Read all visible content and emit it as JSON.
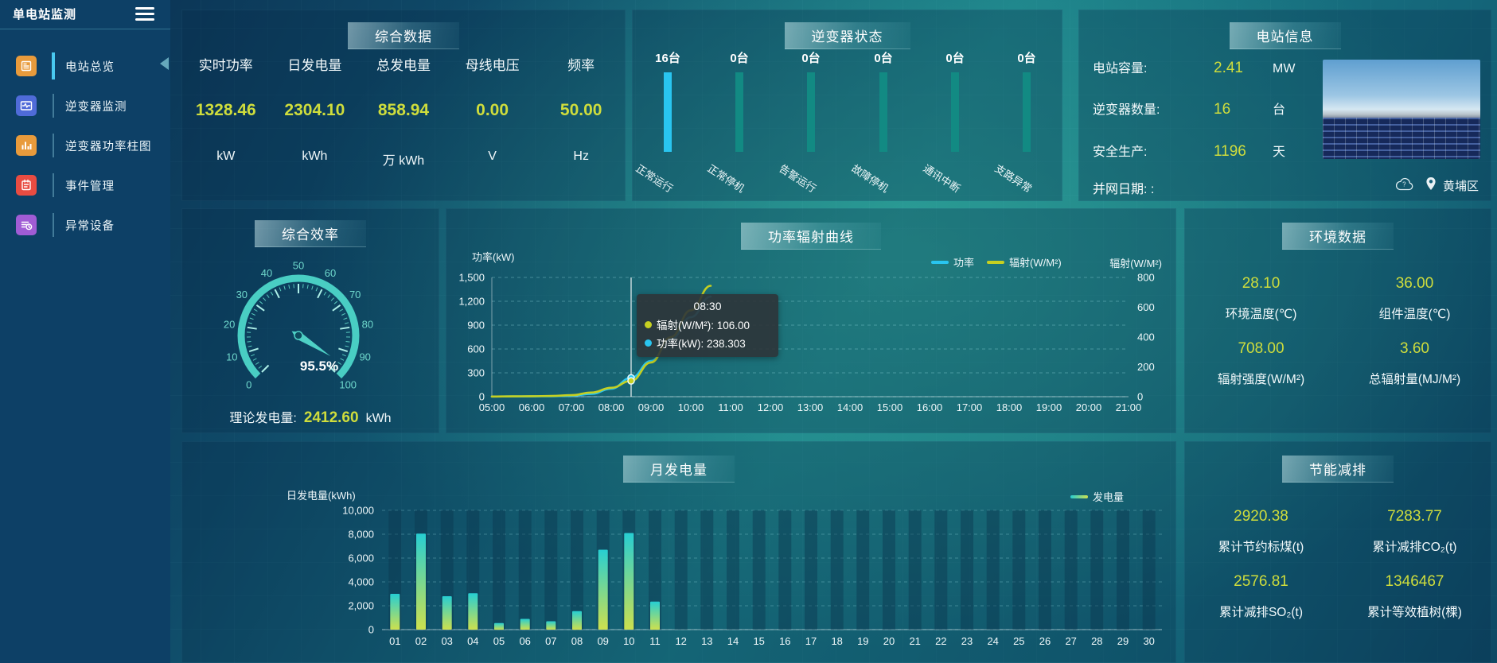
{
  "app": {
    "title": "单电站监测"
  },
  "sidebar": {
    "items": [
      {
        "label": "电站总览",
        "icon": "station-overview-icon",
        "color": "#e89b3c",
        "active": true
      },
      {
        "label": "逆变器监测",
        "icon": "inverter-monitor-icon",
        "color": "#4f6bd8",
        "active": false
      },
      {
        "label": "逆变器功率柱图",
        "icon": "inverter-power-bars-icon",
        "color": "#e89b3c",
        "active": false
      },
      {
        "label": "事件管理",
        "icon": "event-management-icon",
        "color": "#e84c42",
        "active": false
      },
      {
        "label": "异常设备",
        "icon": "abnormal-devices-icon",
        "color": "#a05cd5",
        "active": false
      }
    ]
  },
  "summary": {
    "title": "综合数据",
    "metrics": [
      {
        "label": "实时功率",
        "value": "1328.46",
        "unit": "kW"
      },
      {
        "label": "日发电量",
        "value": "2304.10",
        "unit": "kWh"
      },
      {
        "label": "总发电量",
        "value": "858.94",
        "unit": "万 kWh"
      },
      {
        "label": "母线电压",
        "value": "0.00",
        "unit": "V"
      },
      {
        "label": "频率",
        "value": "50.00",
        "unit": "Hz"
      }
    ]
  },
  "inverter_status": {
    "title": "逆变器状态",
    "statuses": [
      {
        "count": "16台",
        "label": "正常运行",
        "highlight": true
      },
      {
        "count": "0台",
        "label": "正常停机",
        "highlight": false
      },
      {
        "count": "0台",
        "label": "告警运行",
        "highlight": false
      },
      {
        "count": "0台",
        "label": "故障停机",
        "highlight": false
      },
      {
        "count": "0台",
        "label": "通讯中断",
        "highlight": false
      },
      {
        "count": "0台",
        "label": "支路异常",
        "highlight": false
      }
    ]
  },
  "station_info": {
    "title": "电站信息",
    "rows": [
      {
        "label": "电站容量:",
        "value": "2.41",
        "unit": "MW"
      },
      {
        "label": "逆变器数量:",
        "value": "16",
        "unit": "台"
      },
      {
        "label": "安全生产:",
        "value": "1196",
        "unit": "天"
      }
    ],
    "grid_date_label": "并网日期: :",
    "location": "黄埔区"
  },
  "efficiency": {
    "title": "综合效率",
    "value_label": "95.5%",
    "theory_label": "理论发电量:",
    "theory_value": "2412.60",
    "theory_unit": "kWh"
  },
  "power_radiation": {
    "title": "功率辐射曲线"
  },
  "environment": {
    "title": "环境数据",
    "metrics": [
      {
        "value": "28.10",
        "label": "环境温度(℃)"
      },
      {
        "value": "36.00",
        "label": "组件温度(℃)"
      },
      {
        "value": "708.00",
        "label": "辐射强度(W/M²)"
      },
      {
        "value": "3.60",
        "label": "总辐射量(MJ/M²)"
      }
    ]
  },
  "monthly": {
    "title": "月发电量"
  },
  "energy_saving": {
    "title": "节能减排",
    "metrics": [
      {
        "value": "2920.38",
        "label": "累计节约标煤(t)"
      },
      {
        "value": "7283.77",
        "label": "累计减排CO₂(t)"
      },
      {
        "value": "2576.81",
        "label": "累计减排SO₂(t)"
      },
      {
        "value": "1346467",
        "label": "累计等效植树(棵)"
      }
    ]
  },
  "colors": {
    "value_yellow": "#cfdd3c",
    "power_line": "#29c5f0",
    "radiation_line": "#c6d021",
    "status_highlight_bar": "#29c5f0",
    "status_normal_bar": "#128a83",
    "bar_gradient_top": "#27ced2",
    "bar_gradient_bottom": "#cde04e",
    "gauge_teal": "#49cec3"
  },
  "chart_data": [
    {
      "type": "gauge",
      "title": "综合效率",
      "value": 95.5,
      "min": 0,
      "max": 100,
      "tick_interval": 10,
      "value_label": "95.5%"
    },
    {
      "type": "line",
      "title": "功率辐射曲线",
      "x_ticks": [
        "05:00",
        "06:00",
        "07:00",
        "08:00",
        "09:00",
        "10:00",
        "11:00",
        "12:00",
        "13:00",
        "14:00",
        "15:00",
        "16:00",
        "17:00",
        "18:00",
        "19:00",
        "20:00",
        "21:00"
      ],
      "x_range_hours": [
        5,
        21
      ],
      "left_axis": {
        "title": "功率(kW)",
        "max": 1500,
        "ticks": [
          "1,500",
          "1,200",
          "900",
          "600",
          "300",
          "0"
        ]
      },
      "right_axis": {
        "title": "辐射(W/M²)",
        "max": 800,
        "ticks": [
          "800",
          "600",
          "400",
          "200",
          "0"
        ]
      },
      "legend": [
        "功率",
        "辐射(W/M²)"
      ],
      "series": [
        {
          "name": "功率",
          "axis": "left",
          "color": "#29c5f0",
          "x": [
            5,
            5.5,
            6,
            6.5,
            7,
            7.5,
            8,
            8.5,
            9,
            9.5,
            10,
            10.5
          ],
          "values": [
            2,
            3,
            4,
            6,
            12,
            35,
            100,
            238.3,
            450,
            720,
            1000,
            1260
          ]
        },
        {
          "name": "辐射(W/M²)",
          "axis": "right",
          "color": "#c6d021",
          "x": [
            5,
            5.5,
            6,
            6.5,
            7,
            7.5,
            8,
            8.5,
            9,
            9.5,
            10,
            10.5
          ],
          "values": [
            1,
            2,
            3,
            5,
            10,
            28,
            60,
            106,
            230,
            400,
            580,
            744
          ]
        }
      ],
      "tooltip": {
        "x_hour": 8.5,
        "time": "08:30",
        "entries": [
          {
            "name": "辐射(W/M²)",
            "value": "106.00",
            "color": "#c6d021"
          },
          {
            "name": "功率(kW)",
            "value": "238.303",
            "color": "#29c5f0"
          }
        ]
      }
    },
    {
      "type": "bar",
      "title": "月发电量",
      "ylabel": "日发电量(kWh)",
      "legend": "发电量",
      "ylim": [
        0,
        10000
      ],
      "y_ticks": [
        "10,000",
        "8,000",
        "6,000",
        "4,000",
        "2,000",
        "0"
      ],
      "categories": [
        "01",
        "02",
        "03",
        "04",
        "05",
        "06",
        "07",
        "08",
        "09",
        "10",
        "11",
        "12",
        "13",
        "14",
        "15",
        "16",
        "17",
        "18",
        "19",
        "20",
        "21",
        "22",
        "23",
        "24",
        "25",
        "26",
        "27",
        "28",
        "29",
        "30"
      ],
      "values": [
        3000,
        8050,
        2800,
        3050,
        550,
        900,
        700,
        1550,
        6700,
        8100,
        2350,
        0,
        0,
        0,
        0,
        0,
        0,
        0,
        0,
        0,
        0,
        0,
        0,
        0,
        0,
        0,
        0,
        0,
        0,
        0
      ]
    },
    {
      "type": "bar",
      "title": "逆变器状态",
      "unit": "台",
      "categories": [
        "正常运行",
        "正常停机",
        "告警运行",
        "故障停机",
        "通讯中断",
        "支路异常"
      ],
      "values": [
        16,
        0,
        0,
        0,
        0,
        0
      ]
    }
  ]
}
